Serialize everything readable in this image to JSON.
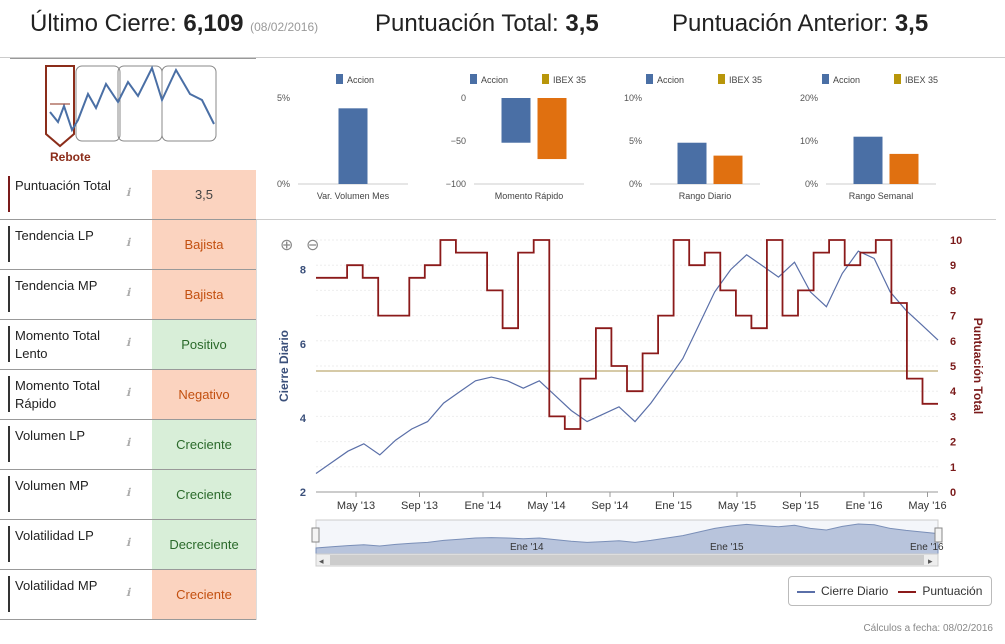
{
  "header": {
    "ultimo_label": "Último Cierre:",
    "ultimo_value": "6,109",
    "ultimo_date": "(08/02/2016)",
    "total_label": "Puntuación Total:",
    "total_value": "3,5",
    "anterior_label": "Puntuación Anterior:",
    "anterior_value": "3,5"
  },
  "pattern": {
    "label": "Rebote"
  },
  "indicators": [
    {
      "label": "Puntuación Total",
      "value": "3,5",
      "style": "orange"
    },
    {
      "label": "Tendencia LP",
      "value": "Bajista",
      "style": "orange-text"
    },
    {
      "label": "Tendencia MP",
      "value": "Bajista",
      "style": "orange-text"
    },
    {
      "label": "Momento Total Lento",
      "value": "Positivo",
      "style": "green"
    },
    {
      "label": "Momento Total Rápido",
      "value": "Negativo",
      "style": "orange-text"
    },
    {
      "label": "Volumen LP",
      "value": "Creciente",
      "style": "green"
    },
    {
      "label": "Volumen MP",
      "value": "Creciente",
      "style": "green"
    },
    {
      "label": "Volatilidad LP",
      "value": "Decreciente",
      "style": "green"
    },
    {
      "label": "Volatilidad MP",
      "value": "Creciente",
      "style": "orange-text"
    }
  ],
  "colors": {
    "accion": "#4a6fa5",
    "ibex": "#e07010",
    "ibex_legend": "#b8960a",
    "puntuacion": "#8b1a1a",
    "cierre": "#5a6fa8"
  },
  "mini_charts": [
    {
      "title": "Var. Volumen Mes",
      "legend": [
        "Accion"
      ],
      "ticks": [
        "5%",
        "0%"
      ],
      "ylim": [
        0,
        5
      ],
      "values": [
        4.4
      ]
    },
    {
      "title": "Momento Rápido",
      "legend": [
        "Accion",
        "IBEX 35"
      ],
      "ticks": [
        "0",
        "−50",
        "−100"
      ],
      "ylim": [
        -100,
        0
      ],
      "values": [
        -52,
        -71
      ]
    },
    {
      "title": "Rango Diario",
      "legend": [
        "Accion",
        "IBEX 35"
      ],
      "ticks": [
        "10%",
        "5%",
        "0%"
      ],
      "ylim": [
        0,
        10
      ],
      "values": [
        4.8,
        3.3
      ]
    },
    {
      "title": "Rango Semanal",
      "legend": [
        "Accion",
        "IBEX 35"
      ],
      "ticks": [
        "20%",
        "10%",
        "0%"
      ],
      "ylim": [
        0,
        20
      ],
      "values": [
        11,
        7
      ]
    }
  ],
  "chart_data": {
    "type": "line",
    "ylabel": "Cierre Diario",
    "y2label": "Puntuación Total",
    "y_ticks": [
      "8",
      "6",
      "4",
      "2"
    ],
    "y2_ticks": [
      "10",
      "9",
      "8",
      "7",
      "6",
      "5",
      "4",
      "3",
      "2",
      "1",
      "0"
    ],
    "x_ticks": [
      "May '13",
      "Sep '13",
      "Ene '14",
      "May '14",
      "Sep '14",
      "Ene '15",
      "May '15",
      "Sep '15",
      "Ene '16",
      "May '16"
    ],
    "ylim": [
      2,
      8.8
    ],
    "y2lim": [
      0,
      10
    ],
    "series": [
      {
        "name": "Cierre Diario",
        "values": [
          2.5,
          2.8,
          3.1,
          3.3,
          3.0,
          3.4,
          3.7,
          3.9,
          4.4,
          4.7,
          5.0,
          5.1,
          5.0,
          4.8,
          5.0,
          4.6,
          4.2,
          3.9,
          4.1,
          4.3,
          3.9,
          4.4,
          5.0,
          5.6,
          6.5,
          7.4,
          8.0,
          8.4,
          8.1,
          7.8,
          8.2,
          7.4,
          7.0,
          7.9,
          8.5,
          8.3,
          7.4,
          6.9,
          6.5,
          6.1
        ]
      },
      {
        "name": "Puntuación",
        "values": [
          8.5,
          8.5,
          9.0,
          8.5,
          7.0,
          7.0,
          8.5,
          9.0,
          10.0,
          9.5,
          9.5,
          8.0,
          6.5,
          9.5,
          10.0,
          3.0,
          2.5,
          4.5,
          6.5,
          5.0,
          4.0,
          5.5,
          7.0,
          10.0,
          9.0,
          9.5,
          8.0,
          7.0,
          6.5,
          10.0,
          7.0,
          8.0,
          9.5,
          10.0,
          9.0,
          9.5,
          10.0,
          7.5,
          4.5,
          3.5
        ]
      }
    ],
    "reference_line": {
      "value": 4.8
    }
  },
  "navigator": {
    "labels": [
      "Ene '14",
      "Ene '15",
      "Ene '16"
    ]
  },
  "zoom": {
    "in": "+",
    "out": "−"
  },
  "legend": {
    "cierre": "Cierre Diario",
    "puntuacion": "Puntuación"
  },
  "footer": "Cálculos a fecha: 08/02/2016"
}
